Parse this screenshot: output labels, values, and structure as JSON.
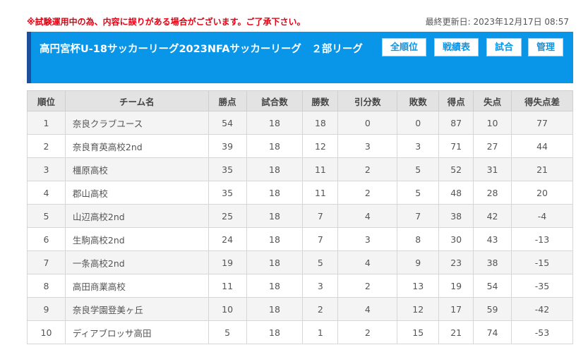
{
  "notice": "※試験運用中の為、内容に誤りがある場合がございます。ご了承下さい。",
  "updated": "最終更新日: 2023年12月17日 08:57",
  "title": "高円宮杯U-18サッカーリーグ2023NFAサッカーリーグ　２部リーグ",
  "buttons": {
    "rank": "全順位",
    "results": "戦績表",
    "matches": "試合",
    "admin": "管理"
  },
  "columns": [
    "順位",
    "チーム名",
    "勝点",
    "試合数",
    "勝数",
    "引分数",
    "敗数",
    "得点",
    "失点",
    "得失点差"
  ],
  "rows": [
    [
      "1",
      "奈良クラブユース",
      "54",
      "18",
      "18",
      "0",
      "0",
      "87",
      "10",
      "77"
    ],
    [
      "2",
      "奈良育英高校2nd",
      "39",
      "18",
      "12",
      "3",
      "3",
      "71",
      "27",
      "44"
    ],
    [
      "3",
      "橿原高校",
      "35",
      "18",
      "11",
      "2",
      "5",
      "52",
      "31",
      "21"
    ],
    [
      "4",
      "郡山高校",
      "35",
      "18",
      "11",
      "2",
      "5",
      "48",
      "28",
      "20"
    ],
    [
      "5",
      "山辺高校2nd",
      "25",
      "18",
      "7",
      "4",
      "7",
      "38",
      "42",
      "-4"
    ],
    [
      "6",
      "生駒高校2nd",
      "24",
      "18",
      "7",
      "3",
      "8",
      "30",
      "43",
      "-13"
    ],
    [
      "7",
      "一条高校2nd",
      "19",
      "18",
      "5",
      "4",
      "9",
      "23",
      "38",
      "-15"
    ],
    [
      "8",
      "高田商業高校",
      "11",
      "18",
      "3",
      "2",
      "13",
      "19",
      "54",
      "-35"
    ],
    [
      "9",
      "奈良学園登美ヶ丘",
      "10",
      "18",
      "2",
      "4",
      "12",
      "17",
      "59",
      "-42"
    ],
    [
      "10",
      "ディアブロッサ高田",
      "5",
      "18",
      "1",
      "2",
      "15",
      "21",
      "74",
      "-53"
    ]
  ]
}
